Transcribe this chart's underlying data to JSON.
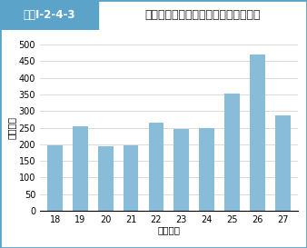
{
  "title": "ロシア機に対する緊急発進回数の推移",
  "header_label": "図表Ⅰ-2-4-3",
  "ylabel": "（回数）",
  "xlabel": "（年度）",
  "categories": [
    "18",
    "19",
    "20",
    "21",
    "22",
    "23",
    "24",
    "25",
    "26",
    "27"
  ],
  "values": [
    197,
    253,
    193,
    196,
    264,
    247,
    248,
    352,
    470,
    288
  ],
  "bar_color": "#88BCD8",
  "ylim": [
    0,
    500
  ],
  "yticks": [
    0,
    50,
    100,
    150,
    200,
    250,
    300,
    350,
    400,
    450,
    500
  ],
  "background_color": "#ffffff",
  "header_bg": "#5BA3C9",
  "header_text_color": "#ffffff",
  "border_color": "#5BA3C9",
  "title_fontsize": 9,
  "axis_fontsize": 7.5,
  "tick_fontsize": 7
}
